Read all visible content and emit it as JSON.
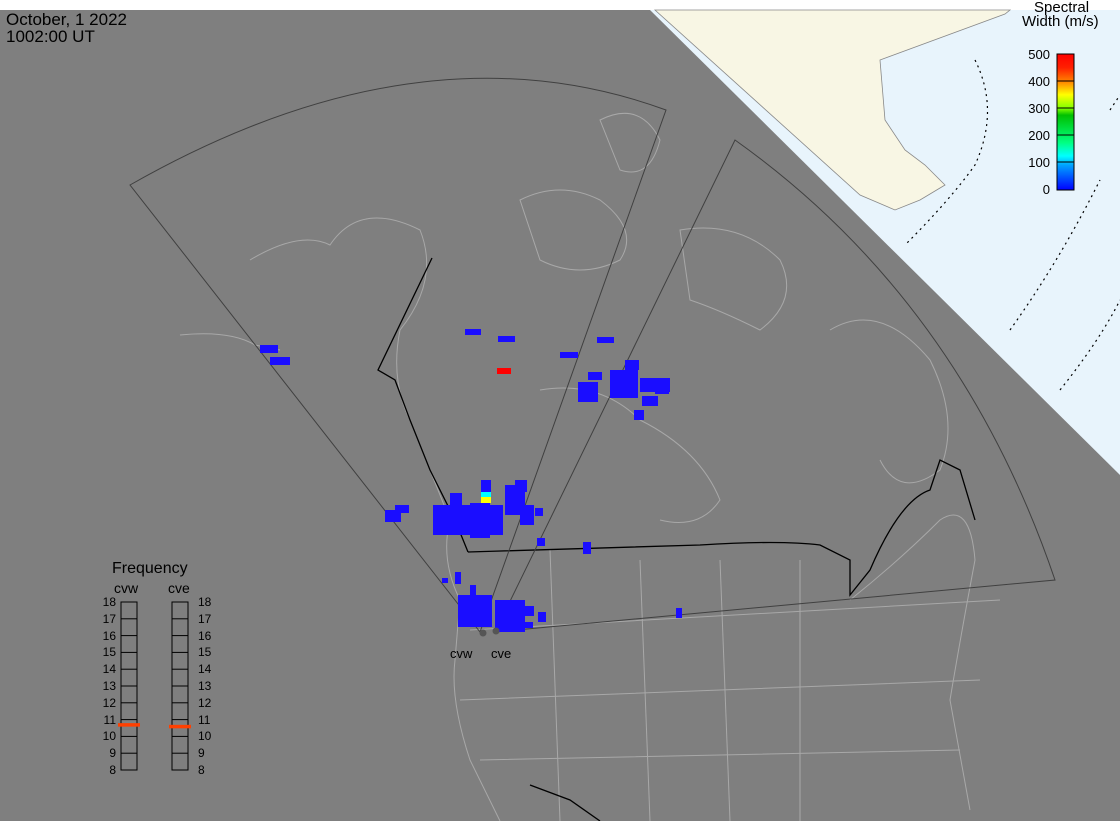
{
  "header": {
    "date": "October, 1 2022",
    "time": "1002:00 UT"
  },
  "colorbar": {
    "title_line1": "Spectral",
    "title_line2": "Width (m/s)",
    "ticks": [
      "500",
      "400",
      "300",
      "200",
      "100",
      "0"
    ],
    "range": [
      0,
      500
    ],
    "colors": [
      "#0000ff",
      "#00ffff",
      "#00ff80",
      "#00c000",
      "#80ff00",
      "#ffff00",
      "#ff8000",
      "#ff0000"
    ]
  },
  "frequency": {
    "title": "Frequency",
    "radars": [
      {
        "name": "cvw",
        "value_mhz": 10.7
      },
      {
        "name": "cve",
        "value_mhz": 10.6
      }
    ],
    "ticks": [
      "18",
      "17",
      "16",
      "15",
      "14",
      "13",
      "12",
      "11",
      "10",
      "9",
      "8"
    ],
    "marker_color": "#ff4000"
  },
  "sites": {
    "cvw": "cvw",
    "cve": "cve"
  },
  "colors": {
    "background": "#7f7f7f",
    "ocean_polar": "#e8f4fc",
    "land_polar": "#f8f6e4",
    "echo": "#1a0dff"
  }
}
